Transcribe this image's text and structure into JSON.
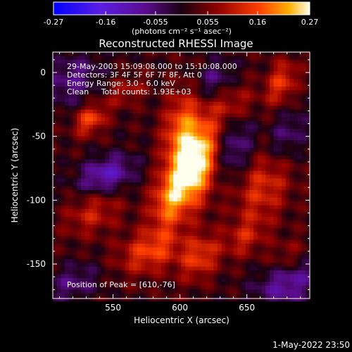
{
  "chart_data": {
    "type": "heatmap",
    "title": "Reconstructed RHESSI Image",
    "xlabel": "Heliocentric X (arcsec)",
    "ylabel": "Heliocentric Y (arcsec)",
    "xlim": [
      505,
      697
    ],
    "ylim": [
      -177,
      16
    ],
    "x_ticks": [
      550,
      600,
      650
    ],
    "y_ticks": [
      0,
      -50,
      -100,
      -150
    ],
    "colorbar": {
      "min": -0.27,
      "max": 0.27,
      "ticks": [
        "-0.27",
        "-0.16",
        "-0.055",
        "0.055",
        "0.16",
        "0.27"
      ],
      "units_label": "(photons cm⁻² s⁻¹ asec⁻²)"
    },
    "annotations": [
      "29-May-2003 15:09:08.000 to 15:10:08.000",
      "Detectors: 3F 4F 5F 6F 7F 8F, Att 0",
      "Energy Range: 3.0 - 6.0 keV",
      "Clean     Total counts: 1.93E+03"
    ],
    "peak_label": "Position of Peak = [610,-76]",
    "peak": {
      "x": 610,
      "y": -76,
      "value": 0.27
    },
    "intensity_blobs": [
      {
        "x": 611,
        "y": -70,
        "sx": 12,
        "sy": 22,
        "a": 0.28
      },
      {
        "x": 600,
        "y": -40,
        "sx": 9,
        "sy": 20,
        "a": 0.12
      },
      {
        "x": 592,
        "y": -100,
        "sx": 10,
        "sy": 16,
        "a": 0.14
      },
      {
        "x": 578,
        "y": -140,
        "sx": 16,
        "sy": 12,
        "a": 0.13
      },
      {
        "x": 615,
        "y": -145,
        "sx": 10,
        "sy": 12,
        "a": 0.12
      },
      {
        "x": 535,
        "y": -110,
        "sx": 14,
        "sy": 12,
        "a": 0.09
      },
      {
        "x": 533,
        "y": -37,
        "sx": 8,
        "sy": 8,
        "a": 0.14
      },
      {
        "x": 560,
        "y": -15,
        "sx": 10,
        "sy": 8,
        "a": 0.07
      },
      {
        "x": 662,
        "y": -90,
        "sx": 14,
        "sy": 20,
        "a": 0.11
      },
      {
        "x": 676,
        "y": -8,
        "sx": 8,
        "sy": 12,
        "a": 0.12
      },
      {
        "x": 640,
        "y": -25,
        "sx": 12,
        "sy": 10,
        "a": 0.07
      },
      {
        "x": 648,
        "y": -130,
        "sx": 10,
        "sy": 10,
        "a": 0.08
      },
      {
        "x": 680,
        "y": -145,
        "sx": 10,
        "sy": 10,
        "a": 0.06
      }
    ],
    "negative_blobs": [
      {
        "x": 545,
        "y": -80,
        "sx": 14,
        "sy": 10,
        "a": -0.14
      },
      {
        "x": 520,
        "y": -5,
        "sx": 14,
        "sy": 14,
        "a": -0.09
      },
      {
        "x": 640,
        "y": -60,
        "sx": 10,
        "sy": 16,
        "a": -0.1
      },
      {
        "x": 680,
        "y": -165,
        "sx": 16,
        "sy": 12,
        "a": -0.12
      },
      {
        "x": 625,
        "y": -5,
        "sx": 10,
        "sy": 10,
        "a": -0.08
      },
      {
        "x": 520,
        "y": -165,
        "sx": 14,
        "sy": 10,
        "a": -0.08
      },
      {
        "x": 680,
        "y": -50,
        "sx": 10,
        "sy": 14,
        "a": -0.08
      }
    ]
  },
  "footer": {
    "timestamp": "1-May-2022 23:50"
  },
  "colors": {
    "background": "#000000",
    "text": "#ffffff"
  }
}
